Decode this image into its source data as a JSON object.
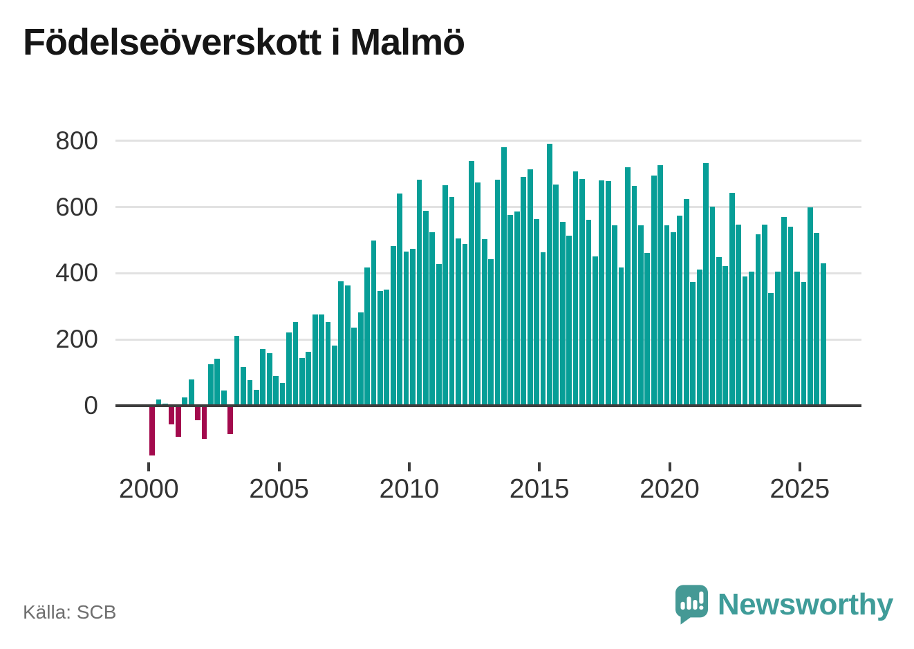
{
  "title": "Födelseöverskott i Malmö",
  "source": {
    "label": "Källa: SCB"
  },
  "branding": {
    "name": "Newsworthy",
    "icon": "newsworthy-speech-bubble-bar-chart-icon"
  },
  "colors": {
    "positive_bar": "#079e97",
    "negative_bar": "#a30a4d",
    "axis_line": "#3d3d3d",
    "gridline": "#e2e2e2",
    "tick_label": "#333333",
    "source_text": "#6f6f6f",
    "brand_teal": "#3f9c99",
    "logo_bubble": "#459995"
  },
  "chart_data": {
    "type": "bar",
    "title": "Födelseöverskott i Malmö",
    "frequency": "quarterly",
    "start": "2000 Q1",
    "end": "2025 Q4",
    "grid": "horizontal",
    "ylim": [
      -160,
      800
    ],
    "y_tick_labels": [
      "0",
      "200",
      "400",
      "600",
      "800"
    ],
    "x_tick_labels": [
      "2000",
      "2005",
      "2010",
      "2015",
      "2020",
      "2025"
    ],
    "values": [
      -146,
      19,
      6,
      -53,
      -90,
      26,
      80,
      -40,
      -95,
      125,
      143,
      46,
      -81,
      210,
      116,
      77,
      48,
      171,
      158,
      90,
      68,
      222,
      252,
      144,
      163,
      276,
      276,
      253,
      182,
      376,
      364,
      236,
      281,
      417,
      499,
      347,
      350,
      483,
      640,
      466,
      473,
      682,
      588,
      525,
      428,
      667,
      631,
      506,
      489,
      740,
      674,
      504,
      442,
      683,
      780,
      577,
      587,
      690,
      713,
      564,
      463,
      792,
      669,
      555,
      513,
      707,
      685,
      562,
      451,
      680,
      678,
      544,
      417,
      720,
      664,
      544,
      461,
      695,
      727,
      544,
      525,
      575,
      625,
      374,
      412,
      733,
      602,
      448,
      421,
      643,
      546,
      390,
      406,
      517,
      546,
      340,
      404,
      569,
      541,
      406,
      373,
      600,
      522,
      431
    ]
  }
}
